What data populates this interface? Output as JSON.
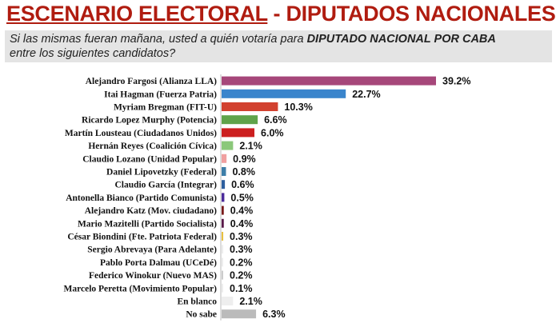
{
  "header": {
    "title_underlined": "ESCENARIO ELECTORAL",
    "title_rest": " - DIPUTADOS NACIONALES",
    "question_pre": "Si las mismas fueran mañana, usted a quién votaría para ",
    "question_bold": "DIPUTADO NACIONAL POR CABA",
    "question_post": "entre los siguientes candidatos?"
  },
  "chart_data": {
    "type": "bar",
    "orientation": "horizontal",
    "unit": "%",
    "categories": [
      "Alejandro Fargosi (Alianza LLA)",
      "Itai Hagman (Fuerza Patria)",
      "Myriam Bregman (FIT-U)",
      "Ricardo Lopez Murphy (Potencia)",
      "Martín Lousteau (Ciudadanos Unidos)",
      "Hernán Reyes (Coalición Cívica)",
      "Claudio Lozano (Unidad Popular)",
      "Daniel Lipovetzky (Federal)",
      "Claudio García (Integrar)",
      "Antonella Bianco (Partido Comunista)",
      "Alejandro Katz (Mov. ciudadano)",
      "Mario Mazitelli (Partido Socialista)",
      "César Biondini (Fte. Patriota Federal)",
      "Sergio Abrevaya (Para Adelante)",
      "Pablo Porta Dalmau (UCeDé)",
      "Federico Winokur (Nuevo MAS)",
      "Marcelo Peretta (Movimiento Popular)",
      "En blanco",
      "No sabe"
    ],
    "values": [
      39.2,
      22.7,
      10.3,
      6.6,
      6.0,
      2.1,
      0.9,
      0.8,
      0.6,
      0.5,
      0.4,
      0.4,
      0.3,
      0.3,
      0.2,
      0.2,
      0.1,
      2.1,
      6.3
    ],
    "labels": [
      "39.2%",
      "22.7%",
      "10.3%",
      "6.6%",
      "6.0%",
      "2.1%",
      "0.9%",
      "0.8%",
      "0.6%",
      "0.5%",
      "0.4%",
      "0.4%",
      "0.3%",
      "0.3%",
      "0.2%",
      "0.2%",
      "0.1%",
      "2.1%",
      "6.3%"
    ],
    "colors": [
      "#a6477a",
      "#3a85cc",
      "#d2412f",
      "#5fa34a",
      "#cc1f1f",
      "#8bc87a",
      "#f0a0a0",
      "#3d7ea8",
      "#2e5f9e",
      "#4b2a9a",
      "#7a1a1a",
      "#5a1a4a",
      "#e8c040",
      "#eeeeee",
      "#eeeeee",
      "#cccccc",
      "#eeeeee",
      "#eeeeee",
      "#bbbbbb"
    ],
    "xlim": [
      0,
      40
    ],
    "grid": false
  }
}
